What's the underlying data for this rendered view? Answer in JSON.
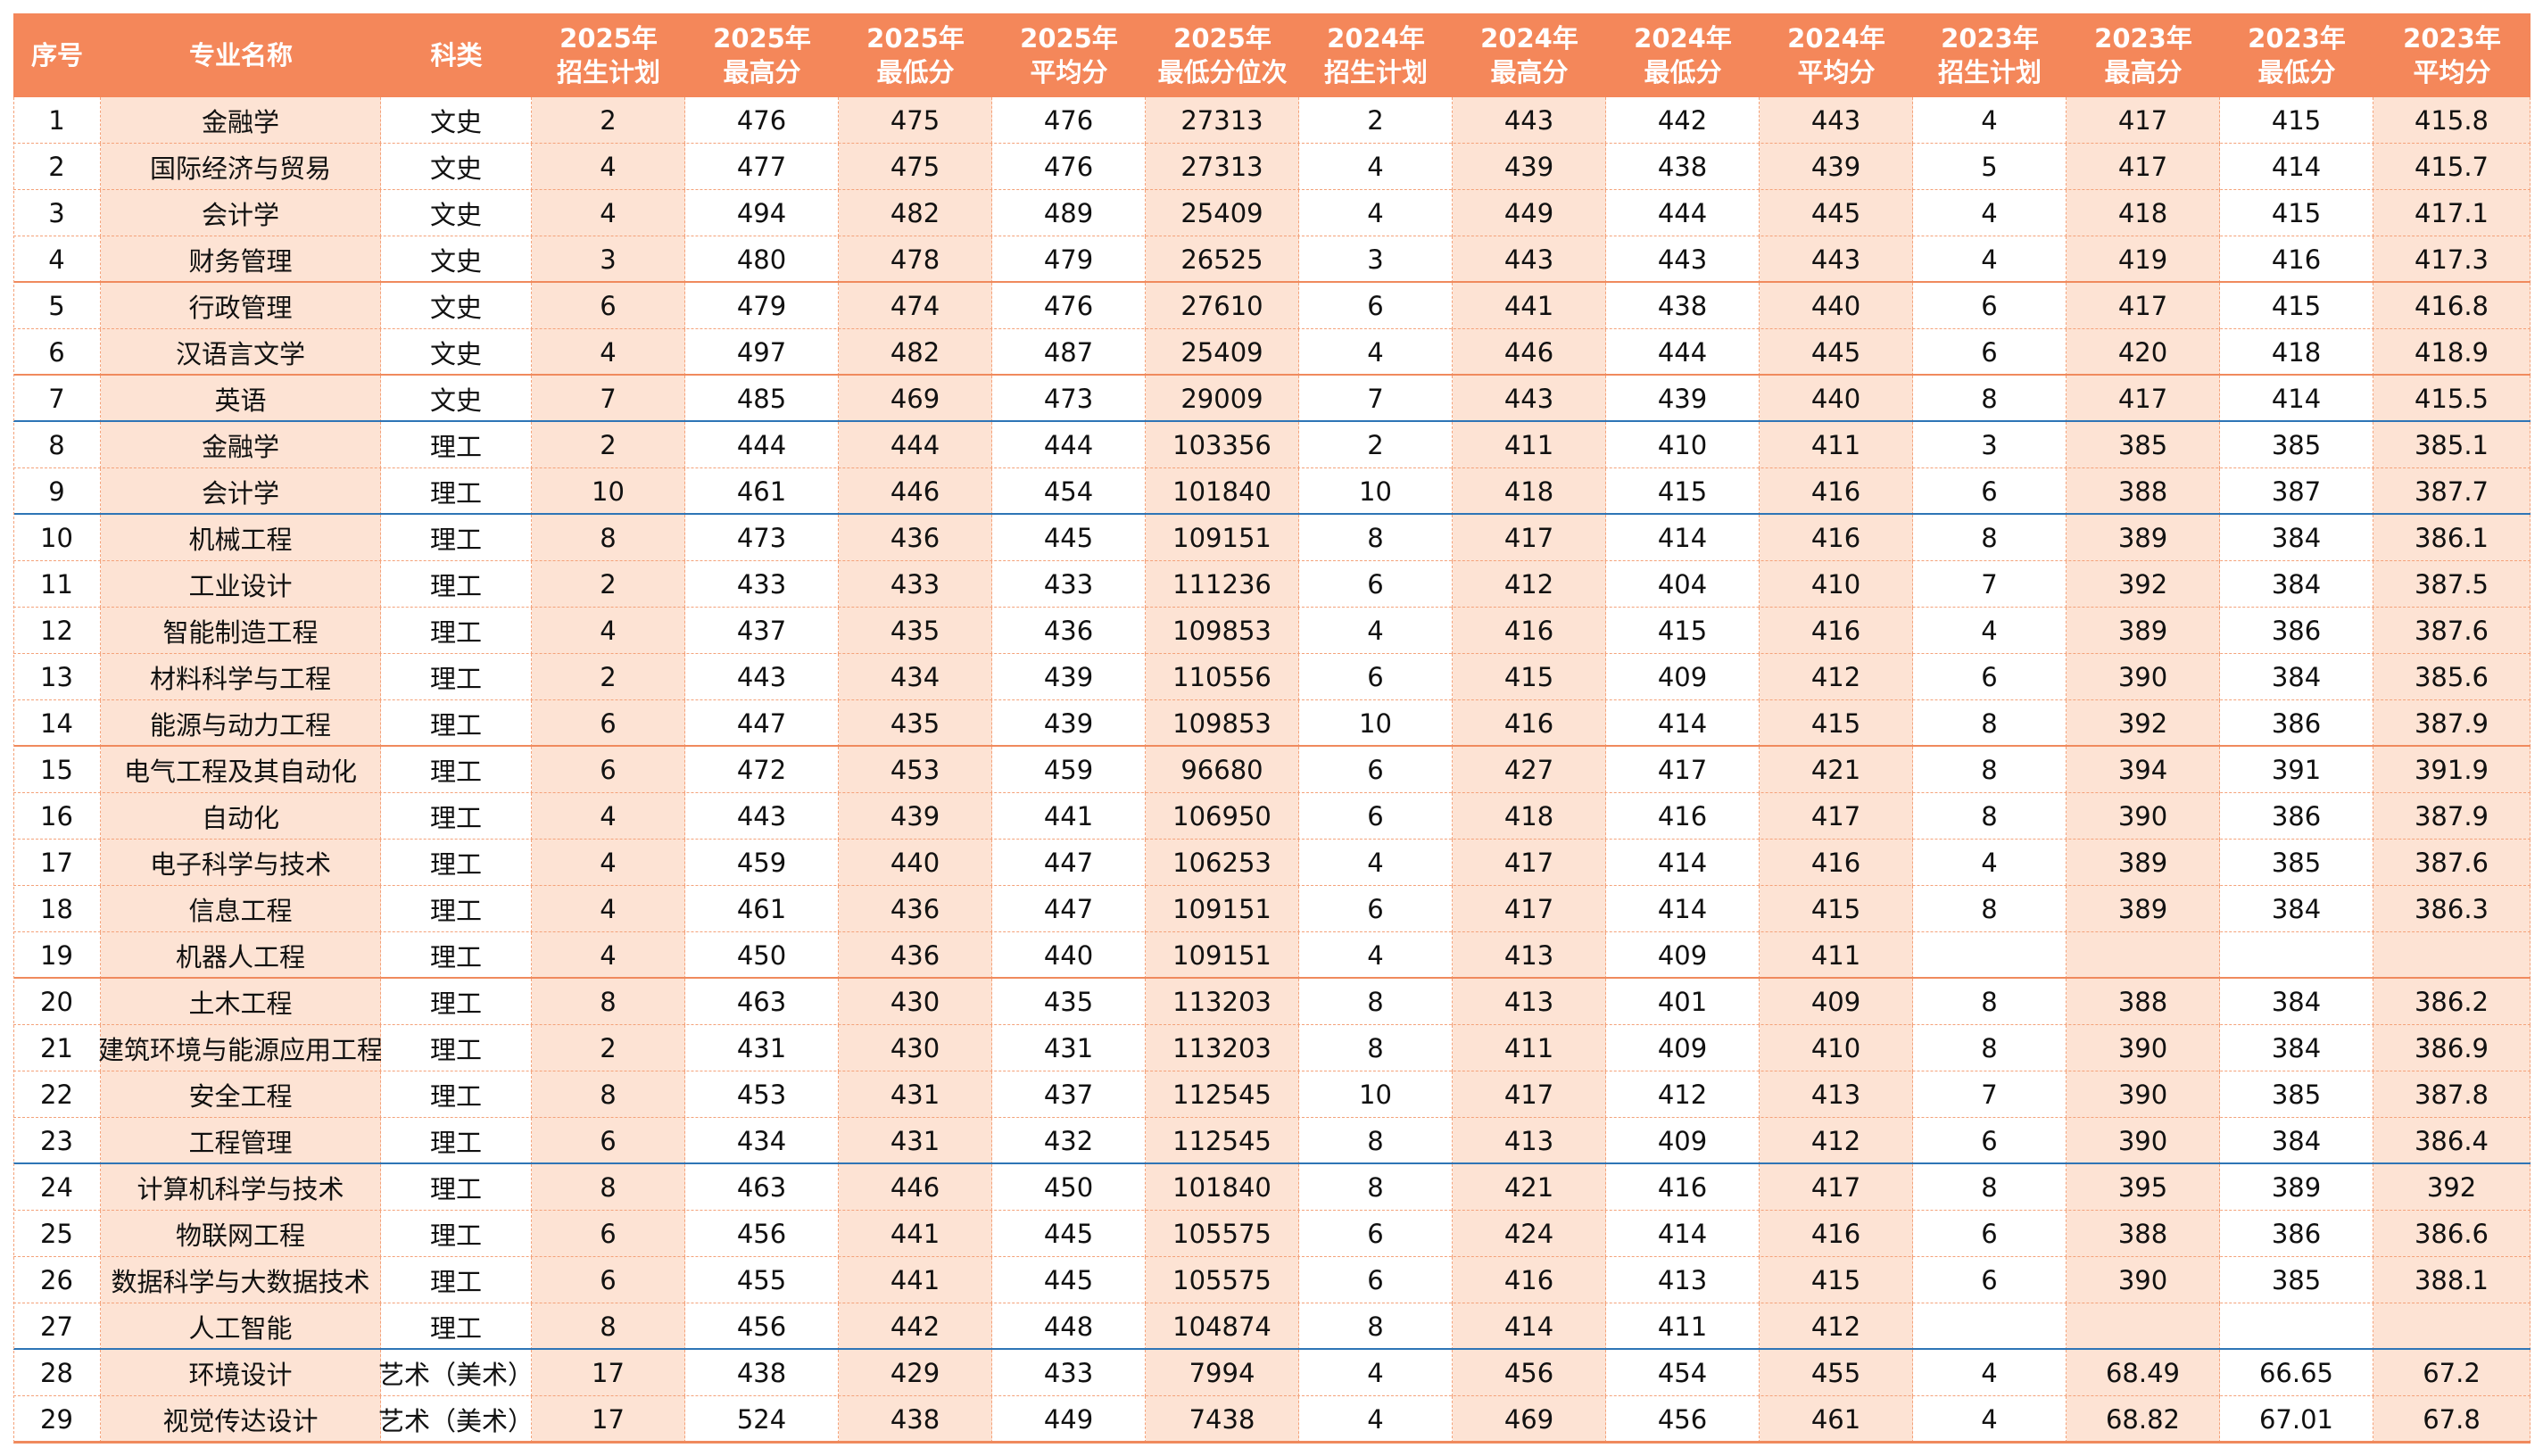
{
  "table": {
    "header": [
      [
        "序号"
      ],
      [
        "专业名称"
      ],
      [
        "科类"
      ],
      [
        "2025年",
        "招生计划"
      ],
      [
        "2025年",
        "最高分"
      ],
      [
        "2025年",
        "最低分"
      ],
      [
        "2025年",
        "平均分"
      ],
      [
        "2025年",
        "最低分位次"
      ],
      [
        "2024年",
        "招生计划"
      ],
      [
        "2024年",
        "最高分"
      ],
      [
        "2024年",
        "最低分"
      ],
      [
        "2024年",
        "平均分"
      ],
      [
        "2023年",
        "招生计划"
      ],
      [
        "2023年",
        "最高分"
      ],
      [
        "2023年",
        "最低分"
      ],
      [
        "2023年",
        "平均分"
      ]
    ],
    "rows": [
      [
        1,
        "金融学",
        "文史",
        2,
        476,
        475,
        476,
        27313,
        2,
        443,
        442,
        443,
        4,
        417,
        415,
        415.8
      ],
      [
        2,
        "国际经济与贸易",
        "文史",
        4,
        477,
        475,
        476,
        27313,
        4,
        439,
        438,
        439,
        5,
        417,
        414,
        415.7
      ],
      [
        3,
        "会计学",
        "文史",
        4,
        494,
        482,
        489,
        25409,
        4,
        449,
        444,
        445,
        4,
        418,
        415,
        417.1
      ],
      [
        4,
        "财务管理",
        "文史",
        3,
        480,
        478,
        479,
        26525,
        3,
        443,
        443,
        443,
        4,
        419,
        416,
        417.3
      ],
      [
        5,
        "行政管理",
        "文史",
        6,
        479,
        474,
        476,
        27610,
        6,
        441,
        438,
        440,
        6,
        417,
        415,
        416.8
      ],
      [
        6,
        "汉语言文学",
        "文史",
        4,
        497,
        482,
        487,
        25409,
        4,
        446,
        444,
        445,
        6,
        420,
        418,
        418.9
      ],
      [
        7,
        "英语",
        "文史",
        7,
        485,
        469,
        473,
        29009,
        7,
        443,
        439,
        440,
        8,
        417,
        414,
        415.5
      ],
      [
        8,
        "金融学",
        "理工",
        2,
        444,
        444,
        444,
        103356,
        2,
        411,
        410,
        411,
        3,
        385,
        385,
        385.1
      ],
      [
        9,
        "会计学",
        "理工",
        10,
        461,
        446,
        454,
        101840,
        10,
        418,
        415,
        416,
        6,
        388,
        387,
        387.7
      ],
      [
        10,
        "机械工程",
        "理工",
        8,
        473,
        436,
        445,
        109151,
        8,
        417,
        414,
        416,
        8,
        389,
        384,
        386.1
      ],
      [
        11,
        "工业设计",
        "理工",
        2,
        433,
        433,
        433,
        111236,
        6,
        412,
        404,
        410,
        7,
        392,
        384,
        387.5
      ],
      [
        12,
        "智能制造工程",
        "理工",
        4,
        437,
        435,
        436,
        109853,
        4,
        416,
        415,
        416,
        4,
        389,
        386,
        387.6
      ],
      [
        13,
        "材料科学与工程",
        "理工",
        2,
        443,
        434,
        439,
        110556,
        6,
        415,
        409,
        412,
        6,
        390,
        384,
        385.6
      ],
      [
        14,
        "能源与动力工程",
        "理工",
        6,
        447,
        435,
        439,
        109853,
        10,
        416,
        414,
        415,
        8,
        392,
        386,
        387.9
      ],
      [
        15,
        "电气工程及其自动化",
        "理工",
        6,
        472,
        453,
        459,
        96680,
        6,
        427,
        417,
        421,
        8,
        394,
        391,
        391.9
      ],
      [
        16,
        "自动化",
        "理工",
        4,
        443,
        439,
        441,
        106950,
        6,
        418,
        416,
        417,
        8,
        390,
        386,
        387.9
      ],
      [
        17,
        "电子科学与技术",
        "理工",
        4,
        459,
        440,
        447,
        106253,
        4,
        417,
        414,
        416,
        4,
        389,
        385,
        387.6
      ],
      [
        18,
        "信息工程",
        "理工",
        4,
        461,
        436,
        447,
        109151,
        6,
        417,
        414,
        415,
        8,
        389,
        384,
        386.3
      ],
      [
        19,
        "机器人工程",
        "理工",
        4,
        450,
        436,
        440,
        109151,
        4,
        413,
        409,
        411,
        null,
        null,
        null,
        null
      ],
      [
        20,
        "土木工程",
        "理工",
        8,
        463,
        430,
        435,
        113203,
        8,
        413,
        401,
        409,
        8,
        388,
        384,
        386.2
      ],
      [
        21,
        "建筑环境与能源应用工程",
        "理工",
        2,
        431,
        430,
        431,
        113203,
        8,
        411,
        409,
        410,
        8,
        390,
        384,
        386.9
      ],
      [
        22,
        "安全工程",
        "理工",
        8,
        453,
        431,
        437,
        112545,
        10,
        417,
        412,
        413,
        7,
        390,
        385,
        387.8
      ],
      [
        23,
        "工程管理",
        "理工",
        6,
        434,
        431,
        432,
        112545,
        8,
        413,
        409,
        412,
        6,
        390,
        384,
        386.4
      ],
      [
        24,
        "计算机科学与技术",
        "理工",
        8,
        463,
        446,
        450,
        101840,
        8,
        421,
        416,
        417,
        8,
        395,
        389,
        392
      ],
      [
        25,
        "物联网工程",
        "理工",
        6,
        456,
        441,
        445,
        105575,
        6,
        424,
        414,
        416,
        6,
        388,
        386,
        386.6
      ],
      [
        26,
        "数据科学与大数据技术",
        "理工",
        6,
        455,
        441,
        445,
        105575,
        6,
        416,
        413,
        415,
        6,
        390,
        385,
        388.1
      ],
      [
        27,
        "人工智能",
        "理工",
        8,
        456,
        442,
        448,
        104874,
        8,
        414,
        411,
        412,
        null,
        null,
        null,
        null
      ],
      [
        28,
        "环境设计",
        "艺术（美术）",
        17,
        438,
        429,
        433,
        7994,
        4,
        456,
        454,
        455,
        4,
        68.49,
        66.65,
        67.2
      ],
      [
        29,
        "视觉传达设计",
        "艺术（美术）",
        17,
        524,
        438,
        449,
        7438,
        4,
        469,
        456,
        461,
        4,
        68.82,
        67.01,
        67.8
      ]
    ]
  }
}
